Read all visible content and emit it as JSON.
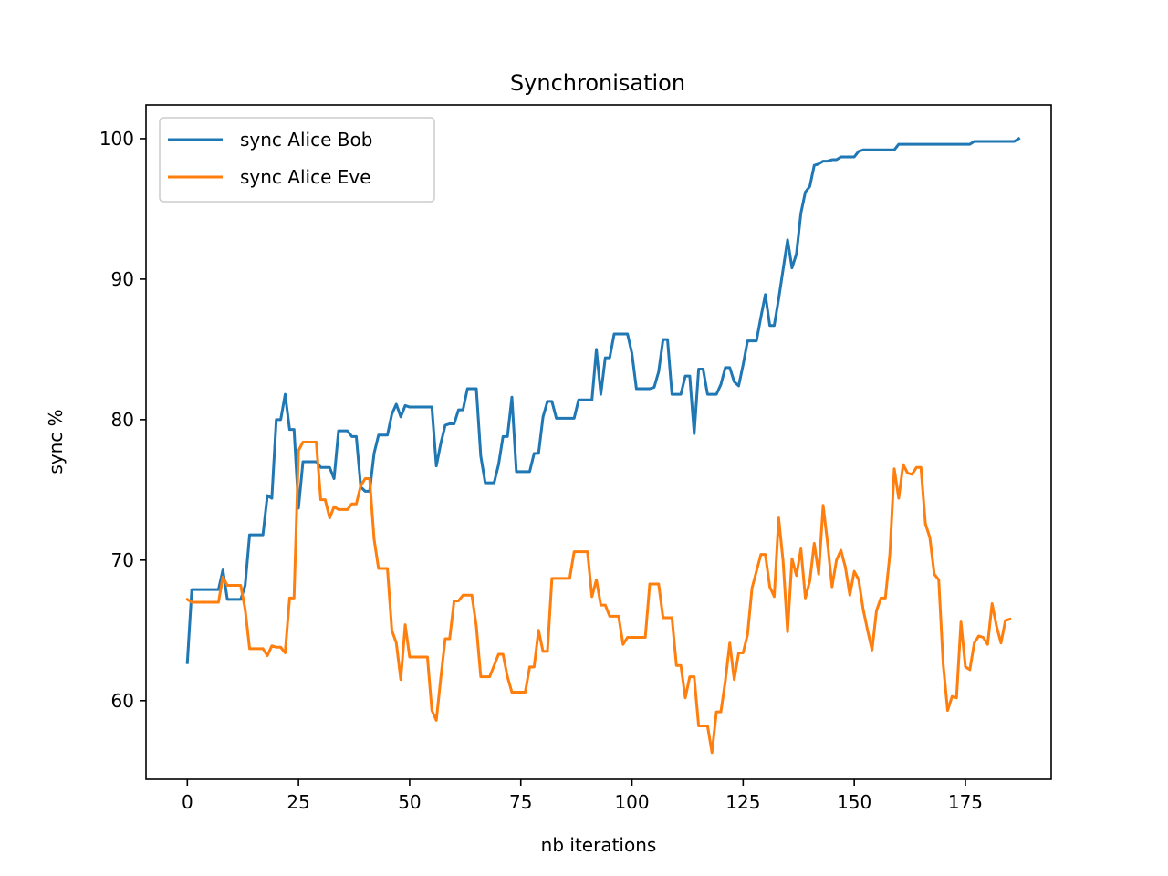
{
  "chart_data": {
    "type": "line",
    "title": "Synchronisation",
    "xlabel": "nb iterations",
    "ylabel": "sync %",
    "xlim": [
      -9.3,
      194.3
    ],
    "ylim": [
      54.4,
      102.4
    ],
    "xticks": [
      0,
      25,
      50,
      75,
      100,
      125,
      150,
      175
    ],
    "yticks": [
      60,
      70,
      80,
      90,
      100
    ],
    "grid": false,
    "legend_position": "upper-left",
    "series": [
      {
        "name": "sync Alice Bob",
        "color": "#1f77b4",
        "values": [
          62.7,
          67.9,
          67.9,
          67.9,
          67.9,
          67.9,
          67.9,
          67.9,
          69.3,
          67.2,
          67.2,
          67.2,
          67.2,
          68.2,
          71.8,
          71.8,
          71.8,
          71.8,
          74.6,
          74.4,
          80.0,
          80.0,
          81.8,
          79.3,
          79.3,
          73.7,
          77.0,
          77.0,
          77.0,
          77.0,
          76.6,
          76.6,
          76.6,
          75.8,
          79.2,
          79.2,
          79.2,
          78.8,
          78.8,
          75.2,
          74.9,
          74.9,
          77.6,
          78.9,
          78.9,
          78.9,
          80.4,
          81.1,
          80.2,
          81.0,
          80.9,
          80.9,
          80.9,
          80.9,
          80.9,
          80.9,
          76.7,
          78.3,
          79.6,
          79.7,
          79.7,
          80.7,
          80.7,
          82.2,
          82.2,
          82.2,
          77.4,
          75.5,
          75.5,
          75.5,
          76.8,
          78.8,
          78.8,
          81.6,
          76.3,
          76.3,
          76.3,
          76.3,
          77.6,
          77.6,
          80.2,
          81.3,
          81.3,
          80.1,
          80.1,
          80.1,
          80.1,
          80.1,
          81.4,
          81.4,
          81.4,
          81.4,
          85.0,
          81.8,
          84.4,
          84.4,
          86.1,
          86.1,
          86.1,
          86.1,
          84.7,
          82.2,
          82.2,
          82.2,
          82.2,
          82.3,
          83.4,
          85.7,
          85.7,
          81.8,
          81.8,
          81.8,
          83.1,
          83.1,
          79.0,
          83.6,
          83.6,
          81.8,
          81.8,
          81.8,
          82.5,
          83.7,
          83.7,
          82.7,
          82.4,
          83.9,
          85.6,
          85.6,
          85.6,
          87.3,
          88.9,
          86.7,
          86.7,
          88.6,
          90.7,
          92.8,
          90.8,
          91.8,
          94.7,
          96.2,
          96.6,
          98.1,
          98.2,
          98.4,
          98.4,
          98.5,
          98.5,
          98.7,
          98.7,
          98.7,
          98.7,
          99.1,
          99.2,
          99.2,
          99.2,
          99.2,
          99.2,
          99.2,
          99.2,
          99.2,
          99.6,
          99.6,
          99.6,
          99.6,
          99.6,
          99.6,
          99.6,
          99.6,
          99.6,
          99.6,
          99.6,
          99.6,
          99.6,
          99.6,
          99.6,
          99.6,
          99.6,
          99.8,
          99.8,
          99.8,
          99.8,
          99.8,
          99.8,
          99.8,
          99.8,
          99.8,
          99.8,
          100.0
        ]
      },
      {
        "name": "sync Alice Eve",
        "color": "#ff7f0e",
        "values": [
          67.2,
          67.0,
          67.0,
          67.0,
          67.0,
          67.0,
          67.0,
          67.0,
          68.8,
          68.2,
          68.2,
          68.2,
          68.2,
          66.5,
          63.7,
          63.7,
          63.7,
          63.7,
          63.2,
          63.9,
          63.8,
          63.8,
          63.4,
          67.3,
          67.3,
          77.8,
          78.4,
          78.4,
          78.4,
          78.4,
          74.3,
          74.3,
          73.0,
          73.8,
          73.6,
          73.6,
          73.6,
          74.0,
          74.0,
          75.3,
          75.8,
          75.8,
          71.5,
          69.4,
          69.4,
          69.4,
          65.0,
          64.1,
          61.5,
          65.4,
          63.1,
          63.1,
          63.1,
          63.1,
          63.1,
          59.3,
          58.6,
          61.6,
          64.4,
          64.4,
          67.1,
          67.1,
          67.5,
          67.5,
          67.5,
          65.3,
          61.7,
          61.7,
          61.7,
          62.5,
          63.3,
          63.3,
          61.7,
          60.6,
          60.6,
          60.6,
          60.6,
          62.4,
          62.4,
          65.0,
          63.5,
          63.5,
          68.7,
          68.7,
          68.7,
          68.7,
          68.7,
          70.6,
          70.6,
          70.6,
          70.6,
          67.4,
          68.6,
          66.8,
          66.8,
          66.0,
          66.0,
          66.0,
          64.0,
          64.5,
          64.5,
          64.5,
          64.5,
          64.5,
          68.3,
          68.3,
          68.3,
          65.9,
          65.9,
          65.9,
          62.5,
          62.5,
          60.2,
          61.7,
          61.7,
          58.2,
          58.2,
          58.2,
          56.3,
          59.2,
          59.2,
          61.4,
          64.1,
          61.5,
          63.4,
          63.4,
          64.7,
          68.0,
          69.2,
          70.4,
          70.4,
          68.1,
          67.4,
          73.0,
          69.9,
          64.9,
          70.1,
          68.9,
          70.8,
          67.3,
          68.5,
          71.2,
          69.0,
          73.9,
          71.2,
          68.1,
          70.0,
          70.7,
          69.5,
          67.5,
          69.2,
          68.6,
          66.5,
          65.0,
          63.6,
          66.4,
          67.3,
          67.3,
          70.4,
          76.5,
          74.4,
          76.8,
          76.2,
          76.1,
          76.6,
          76.6,
          72.6,
          71.6,
          69.0,
          68.6,
          62.6,
          59.3,
          60.3,
          60.2,
          65.6,
          62.4,
          62.2,
          64.1,
          64.6,
          64.5,
          64.0,
          66.9,
          65.3,
          64.1,
          65.7,
          65.8
        ]
      }
    ]
  }
}
